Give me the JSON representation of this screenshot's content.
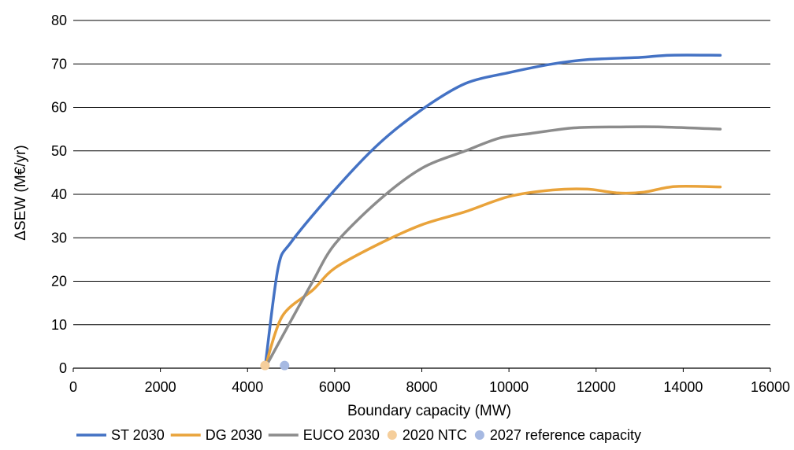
{
  "chart_data": {
    "type": "line",
    "title": "",
    "xlabel": "Boundary capacity (MW)",
    "ylabel": "ΔSEW (M€/yr)",
    "xlim": [
      0,
      16000
    ],
    "ylim": [
      0,
      80
    ],
    "x_ticks": [
      "0",
      "2000",
      "4000",
      "6000",
      "8000",
      "10000",
      "12000",
      "14000",
      "16000"
    ],
    "y_ticks": [
      "0",
      "10",
      "20",
      "30",
      "40",
      "50",
      "60",
      "70",
      "80"
    ],
    "grid": "horizontal",
    "legend_position": "bottom",
    "series": [
      {
        "name": "ST 2030",
        "color": "#4472C4",
        "x": [
          4400,
          4700,
          5000,
          6000,
          7000,
          8000,
          9000,
          10000,
          11000,
          11800,
          13000,
          13700,
          14850
        ],
        "y": [
          0,
          23,
          29,
          41,
          51.5,
          59.5,
          65.5,
          68,
          70,
          71,
          71.5,
          72,
          72
        ]
      },
      {
        "name": "DG 2030",
        "color": "#E9A33B",
        "x": [
          4400,
          4800,
          5500,
          6000,
          7000,
          8000,
          9000,
          10000,
          11000,
          11800,
          12500,
          13100,
          13800,
          14850
        ],
        "y": [
          0,
          12,
          18,
          23,
          28.5,
          33,
          36,
          39.5,
          41,
          41.2,
          40.3,
          40.5,
          41.8,
          41.7
        ]
      },
      {
        "name": "EUCO 2030",
        "color": "#8C8C8C",
        "x": [
          4400,
          5000,
          5500,
          6000,
          7000,
          8000,
          9000,
          9800,
          10500,
          11500,
          12500,
          13500,
          14850
        ],
        "y": [
          0,
          11,
          20,
          28.5,
          38.5,
          46,
          50,
          53,
          54,
          55.3,
          55.5,
          55.5,
          55
        ]
      }
    ],
    "points": [
      {
        "name": "2020 NTC",
        "color": "#F5CE9B",
        "x": 4400,
        "y": 0.6
      },
      {
        "name": "2027 reference capacity",
        "color": "#A6B9E2",
        "x": 4850,
        "y": 0.6
      }
    ]
  }
}
